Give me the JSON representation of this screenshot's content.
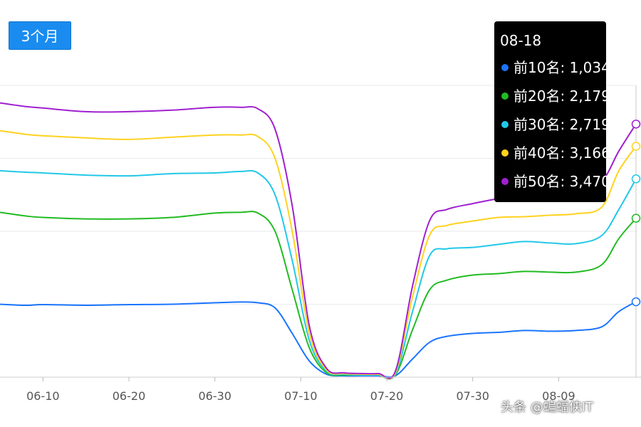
{
  "controls": {
    "range_button": "3个月"
  },
  "chart_data": {
    "type": "line",
    "x_tick_labels": [
      "06-10",
      "06-20",
      "06-30",
      "07-10",
      "07-20",
      "07-30",
      "08-09"
    ],
    "x_range": [
      "2025-06-05",
      "2025-08-18"
    ],
    "y_range": [
      0,
      4000
    ],
    "grid": true,
    "legend": "tooltip",
    "tooltip": {
      "date": "08-18",
      "rows": [
        {
          "label": "前10名",
          "value": "1,034",
          "color": "#1a75ff"
        },
        {
          "label": "前20名",
          "value": "2,179",
          "color": "#22bb22"
        },
        {
          "label": "前30名",
          "value": "2,719",
          "color": "#22c8e8"
        },
        {
          "label": "前40名",
          "value": "3,166",
          "color": "#ffd21f"
        },
        {
          "label": "前50名",
          "value": "3,470",
          "color": "#a020d0"
        }
      ]
    },
    "x": [
      "06-05",
      "06-08",
      "06-10",
      "06-15",
      "06-20",
      "06-25",
      "06-30",
      "07-03",
      "07-05",
      "07-07",
      "07-09",
      "07-11",
      "07-13",
      "07-15",
      "07-17",
      "07-19",
      "07-21",
      "07-23",
      "07-25",
      "07-27",
      "07-30",
      "08-02",
      "08-05",
      "08-08",
      "08-11",
      "08-14",
      "08-16",
      "08-18"
    ],
    "series": [
      {
        "color": "#1a75ff",
        "values": [
          1000,
          985,
          995,
          985,
          995,
          1000,
          1020,
          1030,
          1020,
          950,
          600,
          220,
          40,
          20,
          20,
          20,
          20,
          250,
          480,
          560,
          600,
          615,
          640,
          630,
          640,
          690,
          900,
          1034
        ]
      },
      {
        "color": "#22bb22",
        "values": [
          2260,
          2210,
          2190,
          2170,
          2170,
          2190,
          2250,
          2260,
          2250,
          2000,
          1200,
          400,
          60,
          30,
          30,
          30,
          30,
          650,
          1200,
          1330,
          1400,
          1420,
          1450,
          1440,
          1440,
          1540,
          1900,
          2179
        ]
      },
      {
        "color": "#22c8e8",
        "values": [
          2830,
          2810,
          2800,
          2770,
          2760,
          2790,
          2800,
          2820,
          2800,
          2500,
          1600,
          500,
          80,
          40,
          30,
          30,
          40,
          900,
          1670,
          1760,
          1780,
          1820,
          1860,
          1840,
          1830,
          1940,
          2300,
          2719
        ]
      },
      {
        "color": "#ffd21f",
        "values": [
          3380,
          3330,
          3310,
          3280,
          3260,
          3290,
          3320,
          3320,
          3300,
          3000,
          2000,
          600,
          100,
          50,
          40,
          40,
          60,
          1100,
          1950,
          2080,
          2140,
          2190,
          2200,
          2220,
          2240,
          2330,
          2830,
          3166
        ]
      },
      {
        "color": "#a020d0",
        "values": [
          3760,
          3710,
          3690,
          3640,
          3640,
          3660,
          3700,
          3700,
          3680,
          3400,
          2350,
          700,
          120,
          60,
          50,
          50,
          80,
          1250,
          2150,
          2300,
          2380,
          2450,
          2520,
          2560,
          2580,
          2690,
          3100,
          3470
        ]
      }
    ]
  },
  "watermark": {
    "caption": "头条 @蝙蝠侠IT"
  }
}
